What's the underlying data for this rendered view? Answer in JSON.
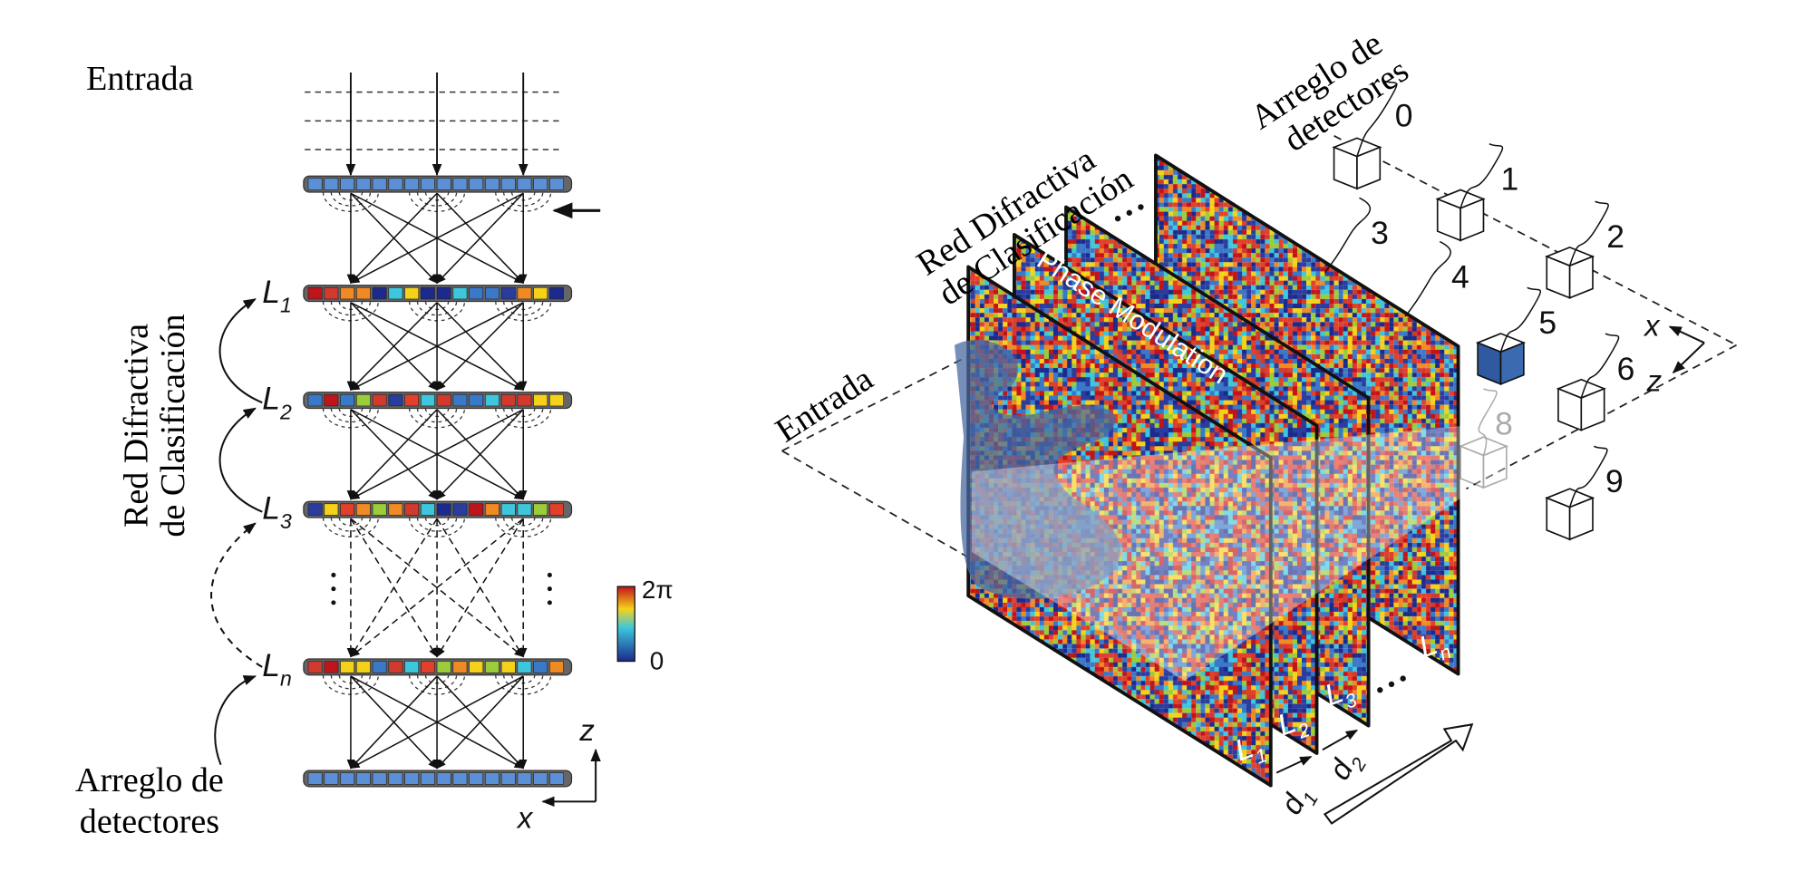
{
  "left": {
    "input_label": "Entrada",
    "network_label": [
      "Red Difractiva",
      "de Clasificación"
    ],
    "layers": [
      {
        "letter": "L",
        "index": "1"
      },
      {
        "letter": "L",
        "index": "2"
      },
      {
        "letter": "L",
        "index": "3"
      },
      {
        "letter": "L",
        "index": "n"
      }
    ],
    "detector_label": [
      "Arreglo de",
      "detectores"
    ],
    "colorbar": {
      "max": "2π",
      "min": "0"
    },
    "axes": {
      "z": "z",
      "x": "x"
    }
  },
  "right": {
    "network_label": [
      "Red Difractiva",
      "de Clasificación"
    ],
    "detector_label": [
      "Arreglo de",
      "detectores"
    ],
    "input_label": "Entrada",
    "modulation_label": "Phase Modulation",
    "layers": [
      {
        "letter": "L",
        "index": "1"
      },
      {
        "letter": "L",
        "index": "2"
      },
      {
        "letter": "L",
        "index": "3"
      },
      {
        "letter": "L",
        "index": "n"
      }
    ],
    "detectors": [
      "0",
      "1",
      "2",
      "3",
      "4",
      "5",
      "6",
      "8",
      "9"
    ],
    "spacings": [
      {
        "letter": "d",
        "index": "1"
      },
      {
        "letter": "d",
        "index": "2"
      }
    ],
    "axes": {
      "x": "x",
      "z": "z"
    }
  }
}
